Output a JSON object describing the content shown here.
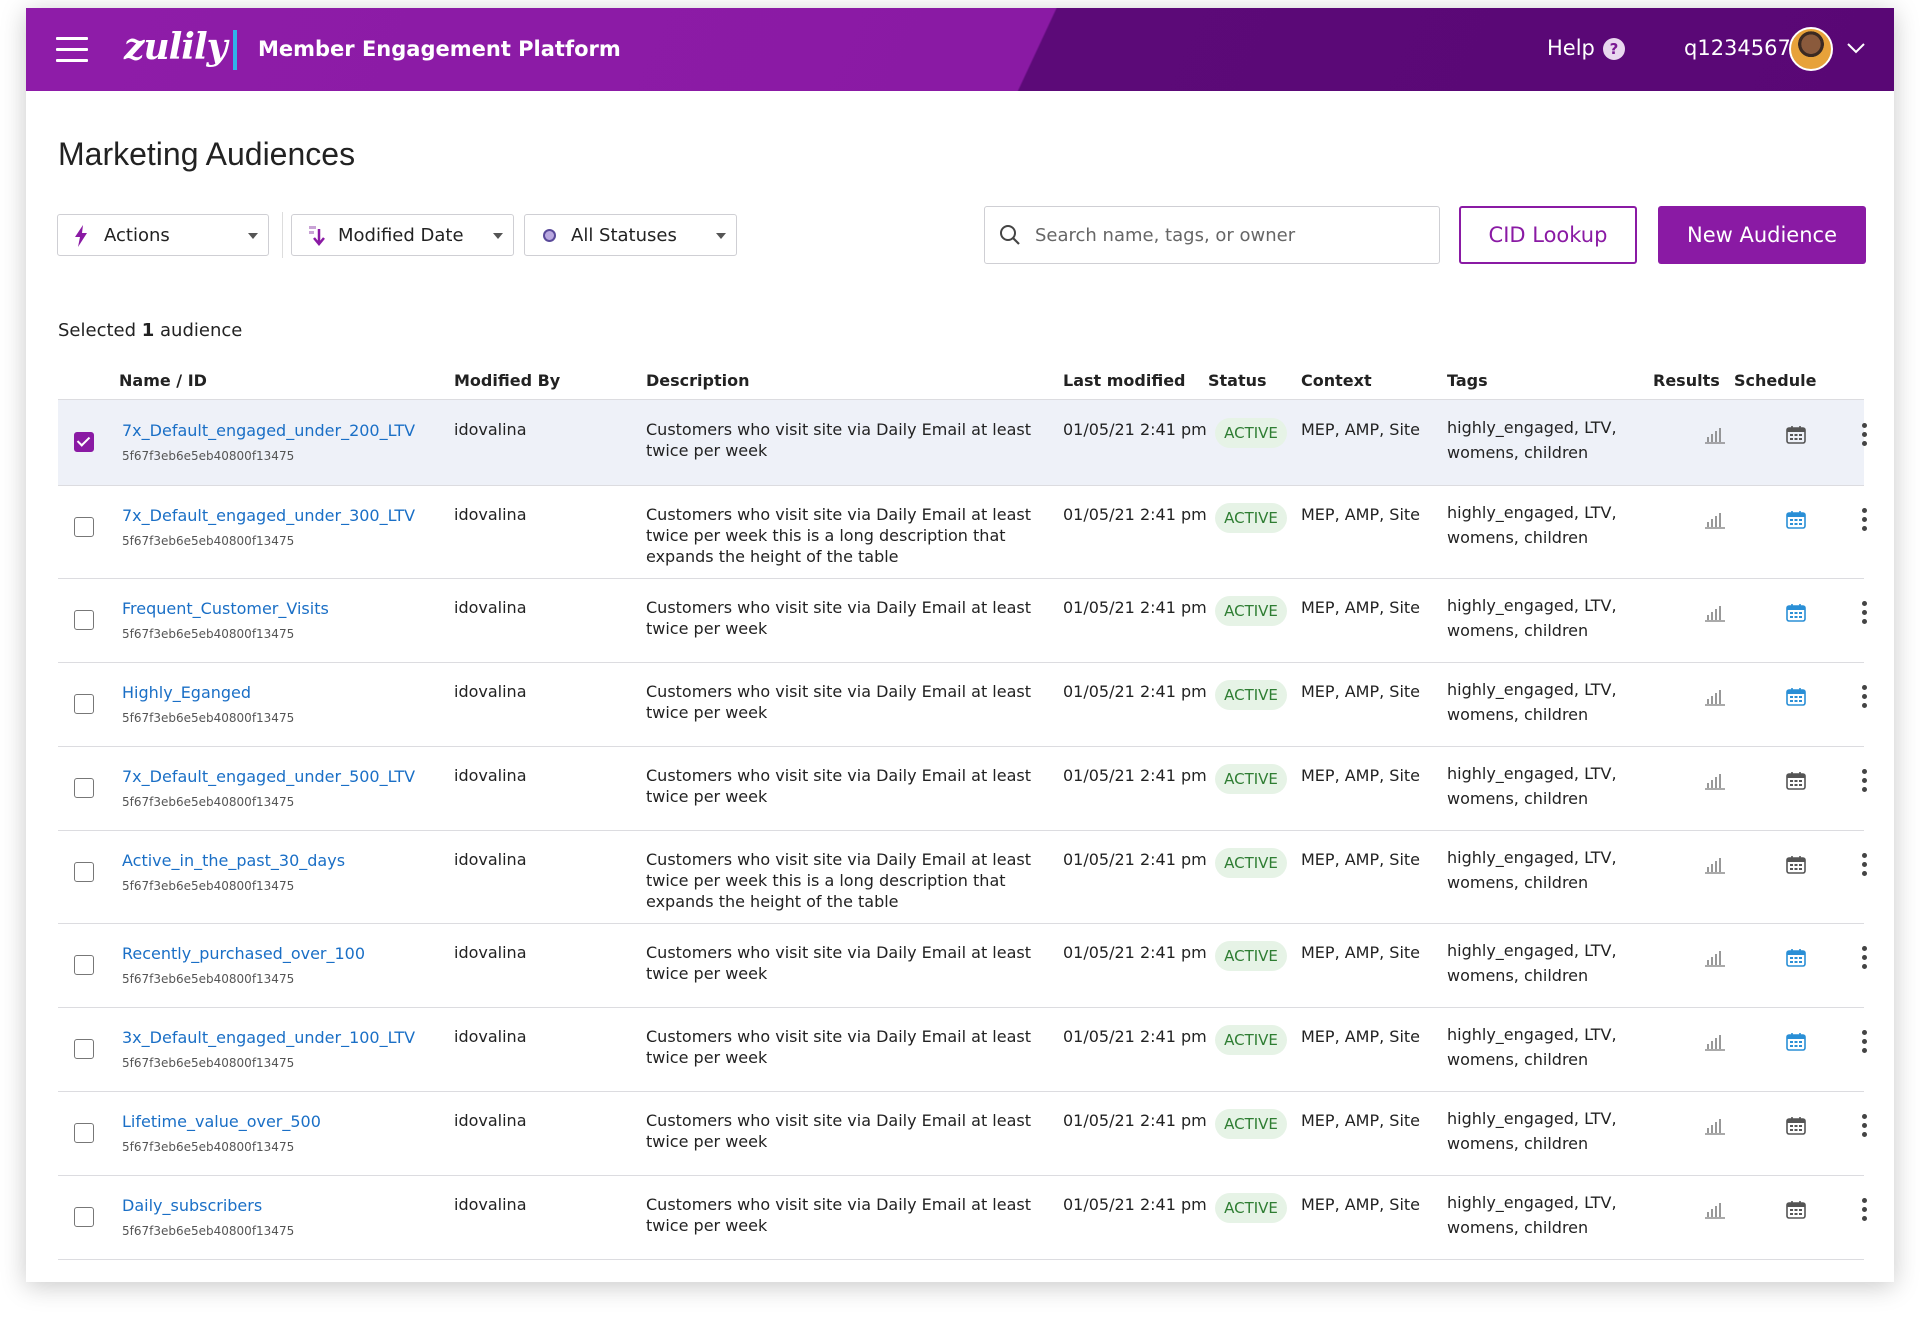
{
  "header": {
    "logo": "zulily",
    "app_title": "Member Engagement Platform",
    "help_label": "Help",
    "help_icon": "?",
    "user_id": "q1234567"
  },
  "page_title": "Marketing Audiences",
  "toolbar": {
    "actions_label": "Actions",
    "modified_label": "Modified Date",
    "status_label": "All Statuses",
    "search_placeholder": "Search name, tags, or owner",
    "cid_label": "CID Lookup",
    "new_label": "New Audience"
  },
  "selection": {
    "prefix": "Selected ",
    "count": "1",
    "suffix": " audience"
  },
  "columns": {
    "name": "Name / ID",
    "modified_by": "Modified By",
    "description": "Description",
    "last_modified": "Last modified",
    "status": "Status",
    "context": "Context",
    "tags": "Tags",
    "results": "Results",
    "schedule": "Schedule"
  },
  "colors": {
    "brand": "#8a1aa4",
    "link": "#1a6fc6",
    "calendar_active": "#2a8fd6",
    "calendar_inactive": "#555555"
  },
  "rows": [
    {
      "checked": true,
      "name": "7x_Default_engaged_under_200_LTV",
      "id": "5f67f3eb6e5eb40800f13475",
      "modified_by": "idovalina",
      "description": "Customers who visit site via Daily Email at least twice per week",
      "last_modified": "01/05/21 2:41 pm",
      "status": "ACTIVE",
      "context": "MEP, AMP, Site",
      "tags": "highly_engaged, LTV, womens, children",
      "schedule_active": false
    },
    {
      "checked": false,
      "name": "7x_Default_engaged_under_300_LTV",
      "id": "5f67f3eb6e5eb40800f13475",
      "modified_by": "idovalina",
      "description": "Customers who visit site via Daily Email at least twice per week this is a long description that expands the height of the table",
      "last_modified": "01/05/21 2:41 pm",
      "status": "ACTIVE",
      "context": "MEP, AMP, Site",
      "tags": "highly_engaged, LTV, womens, children",
      "schedule_active": true
    },
    {
      "checked": false,
      "name": "Frequent_Customer_Visits",
      "id": "5f67f3eb6e5eb40800f13475",
      "modified_by": "idovalina",
      "description": "Customers who visit site via Daily Email at least twice per week",
      "last_modified": "01/05/21 2:41 pm",
      "status": "ACTIVE",
      "context": "MEP, AMP, Site",
      "tags": "highly_engaged, LTV, womens, children",
      "schedule_active": true
    },
    {
      "checked": false,
      "name": "Highly_Eganged",
      "id": "5f67f3eb6e5eb40800f13475",
      "modified_by": "idovalina",
      "description": "Customers who visit site via Daily Email at least twice per week",
      "last_modified": "01/05/21 2:41 pm",
      "status": "ACTIVE",
      "context": "MEP, AMP, Site",
      "tags": "highly_engaged, LTV, womens, children",
      "schedule_active": true
    },
    {
      "checked": false,
      "name": "7x_Default_engaged_under_500_LTV",
      "id": "5f67f3eb6e5eb40800f13475",
      "modified_by": "idovalina",
      "description": "Customers who visit site via Daily Email at least twice per week",
      "last_modified": "01/05/21 2:41 pm",
      "status": "ACTIVE",
      "context": "MEP, AMP, Site",
      "tags": "highly_engaged, LTV, womens, children",
      "schedule_active": false
    },
    {
      "checked": false,
      "name": "Active_in_the_past_30_days",
      "id": "5f67f3eb6e5eb40800f13475",
      "modified_by": "idovalina",
      "description": "Customers who visit site via Daily Email at least twice per week this is a long description that expands the height of the table",
      "last_modified": "01/05/21 2:41 pm",
      "status": "ACTIVE",
      "context": "MEP, AMP, Site",
      "tags": "highly_engaged, LTV, womens, children",
      "schedule_active": false
    },
    {
      "checked": false,
      "name": "Recently_purchased_over_100",
      "id": "5f67f3eb6e5eb40800f13475",
      "modified_by": "idovalina",
      "description": "Customers who visit site via Daily Email at least twice per week",
      "last_modified": "01/05/21 2:41 pm",
      "status": "ACTIVE",
      "context": "MEP, AMP, Site",
      "tags": "highly_engaged, LTV, womens, children",
      "schedule_active": true
    },
    {
      "checked": false,
      "name": "3x_Default_engaged_under_100_LTV",
      "id": "5f67f3eb6e5eb40800f13475",
      "modified_by": "idovalina",
      "description": "Customers who visit site via Daily Email at least twice per week",
      "last_modified": "01/05/21 2:41 pm",
      "status": "ACTIVE",
      "context": "MEP, AMP, Site",
      "tags": "highly_engaged, LTV, womens, children",
      "schedule_active": true
    },
    {
      "checked": false,
      "name": "Lifetime_value_over_500",
      "id": "5f67f3eb6e5eb40800f13475",
      "modified_by": "idovalina",
      "description": "Customers who visit site via Daily Email at least twice per week",
      "last_modified": "01/05/21 2:41 pm",
      "status": "ACTIVE",
      "context": "MEP, AMP, Site",
      "tags": "highly_engaged, LTV, womens, children",
      "schedule_active": false
    },
    {
      "checked": false,
      "name": "Daily_subscribers",
      "id": "5f67f3eb6e5eb40800f13475",
      "modified_by": "idovalina",
      "description": "Customers who visit site via Daily Email at least twice per week",
      "last_modified": "01/05/21 2:41 pm",
      "status": "ACTIVE",
      "context": "MEP, AMP, Site",
      "tags": "highly_engaged, LTV, womens, children",
      "schedule_active": false
    }
  ]
}
